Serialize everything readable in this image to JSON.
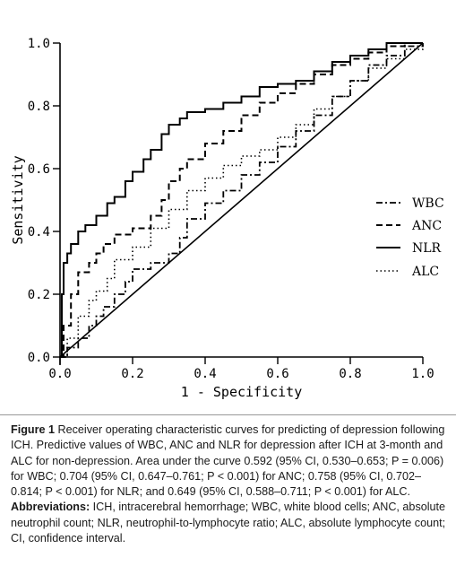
{
  "chart_data": {
    "type": "line",
    "title": "",
    "xlabel": "1 - Specificity",
    "ylabel": "Sensitivity",
    "xlim": [
      0,
      1
    ],
    "ylim": [
      0,
      1
    ],
    "x_ticks": [
      "0.0",
      "0.2",
      "0.4",
      "0.6",
      "0.8",
      "1.0"
    ],
    "y_ticks": [
      "0.0",
      "0.2",
      "0.4",
      "0.6",
      "0.8",
      "1.0"
    ],
    "grid": false,
    "legend_position": "right",
    "reference_line": {
      "x": [
        0,
        1
      ],
      "y": [
        0,
        1
      ]
    },
    "series": [
      {
        "name": "WBC",
        "line_style": "dash-dot",
        "x": [
          0,
          0.02,
          0.05,
          0.08,
          0.1,
          0.12,
          0.15,
          0.18,
          0.2,
          0.25,
          0.3,
          0.33,
          0.35,
          0.4,
          0.45,
          0.5,
          0.55,
          0.6,
          0.65,
          0.7,
          0.75,
          0.8,
          0.85,
          0.9,
          0.95,
          1.0
        ],
        "y": [
          0,
          0.03,
          0.06,
          0.1,
          0.13,
          0.16,
          0.2,
          0.24,
          0.28,
          0.3,
          0.33,
          0.38,
          0.44,
          0.49,
          0.53,
          0.58,
          0.62,
          0.67,
          0.72,
          0.77,
          0.83,
          0.88,
          0.93,
          0.96,
          0.99,
          1.0
        ]
      },
      {
        "name": "ANC",
        "line_style": "dashed",
        "x": [
          0,
          0.01,
          0.03,
          0.05,
          0.08,
          0.1,
          0.12,
          0.15,
          0.2,
          0.25,
          0.28,
          0.3,
          0.33,
          0.35,
          0.4,
          0.45,
          0.5,
          0.55,
          0.6,
          0.65,
          0.7,
          0.75,
          0.8,
          0.85,
          0.9,
          0.95,
          1.0
        ],
        "y": [
          0,
          0.1,
          0.2,
          0.27,
          0.3,
          0.33,
          0.36,
          0.39,
          0.41,
          0.45,
          0.5,
          0.56,
          0.6,
          0.63,
          0.68,
          0.72,
          0.77,
          0.81,
          0.84,
          0.87,
          0.9,
          0.93,
          0.95,
          0.97,
          0.99,
          1.0,
          1.0
        ]
      },
      {
        "name": "NLR",
        "line_style": "solid",
        "x": [
          0,
          0.005,
          0.01,
          0.02,
          0.03,
          0.05,
          0.07,
          0.1,
          0.13,
          0.15,
          0.18,
          0.2,
          0.23,
          0.25,
          0.28,
          0.3,
          0.33,
          0.35,
          0.4,
          0.45,
          0.5,
          0.55,
          0.6,
          0.65,
          0.7,
          0.75,
          0.8,
          0.85,
          0.9,
          0.95,
          1.0
        ],
        "y": [
          0,
          0.2,
          0.3,
          0.33,
          0.36,
          0.4,
          0.42,
          0.45,
          0.49,
          0.51,
          0.56,
          0.59,
          0.63,
          0.66,
          0.71,
          0.74,
          0.76,
          0.78,
          0.79,
          0.81,
          0.83,
          0.86,
          0.87,
          0.88,
          0.91,
          0.94,
          0.96,
          0.98,
          1.0,
          1.0,
          1.0
        ]
      },
      {
        "name": "ALC",
        "line_style": "dotted",
        "x": [
          0,
          0.02,
          0.05,
          0.08,
          0.1,
          0.13,
          0.15,
          0.2,
          0.25,
          0.3,
          0.35,
          0.4,
          0.45,
          0.5,
          0.55,
          0.6,
          0.65,
          0.7,
          0.75,
          0.8,
          0.85,
          0.9,
          0.95,
          1.0
        ],
        "y": [
          0,
          0.06,
          0.13,
          0.18,
          0.21,
          0.25,
          0.31,
          0.35,
          0.41,
          0.47,
          0.53,
          0.57,
          0.61,
          0.64,
          0.66,
          0.7,
          0.74,
          0.79,
          0.83,
          0.88,
          0.92,
          0.95,
          0.98,
          1.0
        ]
      }
    ]
  },
  "caption": {
    "figure_label": "Figure 1",
    "figure_text": " Receiver operating characteristic curves for predicting of depression following ICH. Predictive values of WBC, ANC and NLR for depression after ICH at 3-month and ALC for non-depression. Area under the curve 0.592 (95% CI, 0.530–0.653; P = 0.006) for WBC; 0.704 (95% CI, 0.647–0.761; P < 0.001) for ANC; 0.758 (95% CI, 0.702–0.814; P < 0.001) for NLR; and 0.649 (95% CI, 0.588–0.711; P < 0.001) for ALC.",
    "abbrev_label": "Abbreviations:",
    "abbrev_text": " ICH, intracerebral hemorrhage; WBC, white blood cells; ANC, absolute neutrophil count; NLR, neutrophil-to-lymphocyte ratio; ALC, absolute lymphocyte count; CI, confidence interval."
  }
}
